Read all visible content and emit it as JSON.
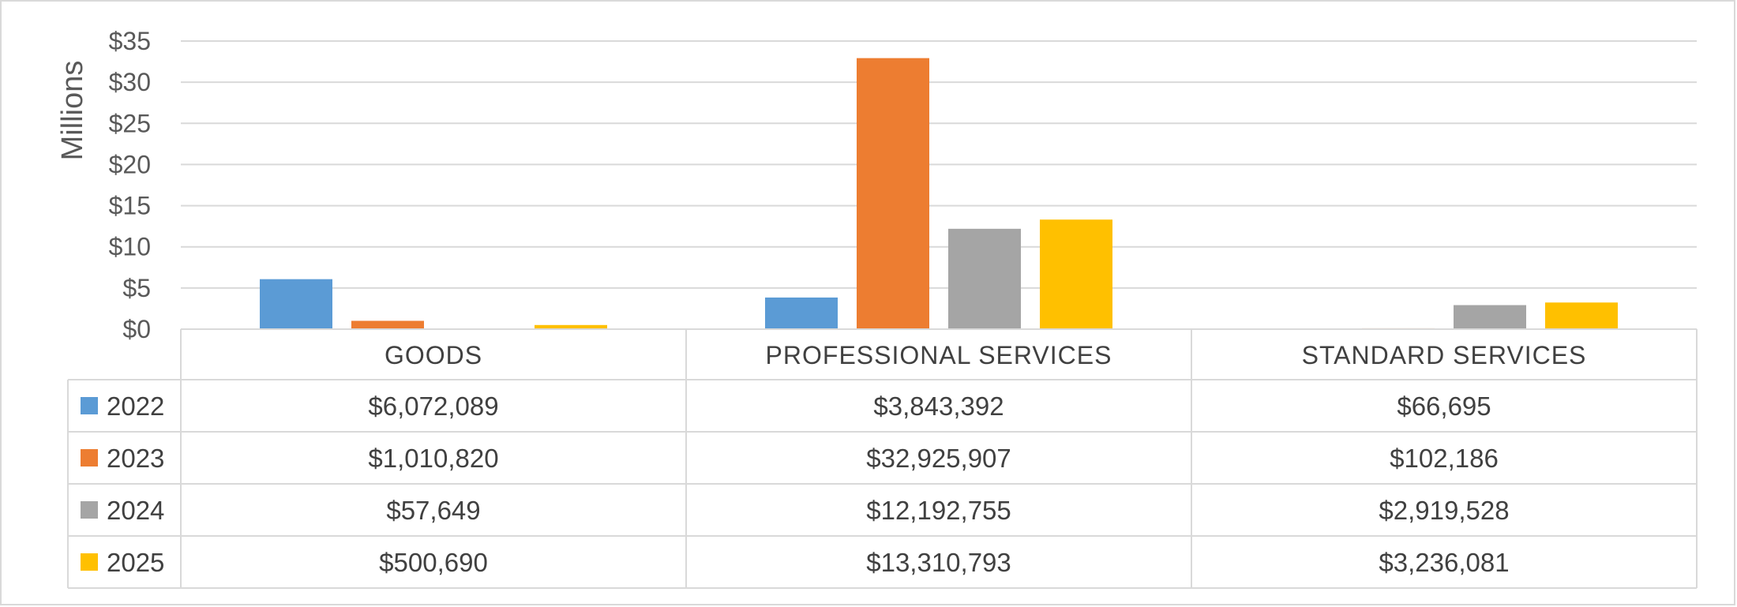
{
  "chart_data": {
    "type": "bar",
    "ylabel": "Millions",
    "ylim": [
      0,
      35
    ],
    "yticks": [
      0,
      5,
      10,
      15,
      20,
      25,
      30,
      35
    ],
    "ytick_labels": [
      "$0",
      "$5",
      "$10",
      "$15",
      "$20",
      "$25",
      "$30",
      "$35"
    ],
    "grid": true,
    "legend": "data-table",
    "categories": [
      "GOODS",
      "PROFESSIONAL SERVICES",
      "STANDARD SERVICES"
    ],
    "series": [
      {
        "name": "2022",
        "color": "#5B9BD5",
        "values": [
          6.072089,
          3.843392,
          0.066695
        ],
        "labels": [
          "$6,072,089",
          "$3,843,392",
          "$66,695"
        ]
      },
      {
        "name": "2023",
        "color": "#ED7D31",
        "values": [
          1.01082,
          32.925907,
          0.102186
        ],
        "labels": [
          "$1,010,820",
          "$32,925,907",
          "$102,186"
        ]
      },
      {
        "name": "2024",
        "color": "#A5A5A5",
        "values": [
          0.057649,
          12.192755,
          2.919528
        ],
        "labels": [
          "$57,649",
          "$12,192,755",
          "$2,919,528"
        ]
      },
      {
        "name": "2025",
        "color": "#FFC000",
        "values": [
          0.50069,
          13.310793,
          3.236081
        ],
        "labels": [
          "$500,690",
          "$13,310,793",
          "$3,236,081"
        ]
      }
    ]
  }
}
